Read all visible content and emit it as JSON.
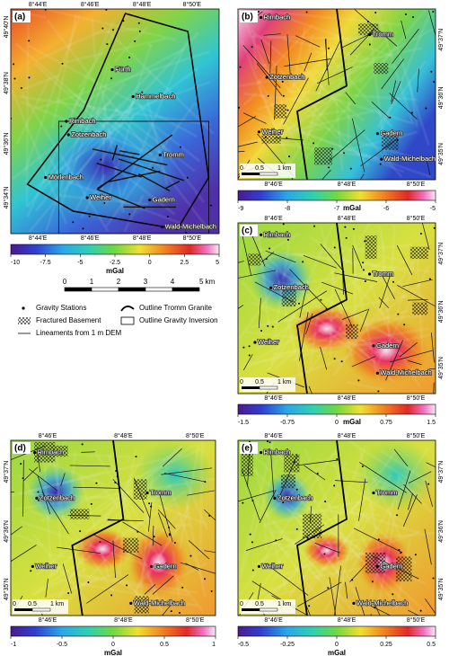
{
  "panels": [
    {
      "label": "(a)",
      "lon_labels": [
        "8°44'E",
        "8°46'E",
        "8°48'E",
        "8°50'E"
      ],
      "lat_labels": [
        "49°40'N",
        "49°38'N",
        "49°36'N",
        "49°34'N"
      ],
      "places": [
        "Fürth",
        "Hammelbach",
        "Rimbach",
        "Zotzenbach",
        "Tromm",
        "Mörlenbach",
        "Weiher",
        "Gadern",
        "Wald-Michelbach"
      ],
      "colorbar": {
        "lim": [
          -10,
          5
        ],
        "ticks": [
          -10,
          -7.5,
          -5,
          -2.5,
          0,
          2.5,
          5
        ],
        "unit": "mGal"
      }
    },
    {
      "label": "(b)",
      "lon_labels": [
        "8°46'E",
        "8°48'E",
        "8°50'E"
      ],
      "lat_labels": [
        "49°37'N",
        "49°36'N",
        "49°35'N"
      ],
      "places": [
        "Rimbach",
        "Zotzenbach",
        "Tromm",
        "Weiher",
        "Gadern",
        "Wald-Michelbach"
      ],
      "scale_labels": [
        "0",
        "0.5",
        "1 km"
      ],
      "colorbar": {
        "lim": [
          -9,
          -5
        ],
        "ticks": [
          -9,
          -8,
          -7,
          -6,
          -5
        ],
        "unit": "mGal"
      }
    },
    {
      "label": "(c)",
      "lon_labels": [
        "8°46'E",
        "8°48'E",
        "8°50'E"
      ],
      "lat_labels": [
        "49°37'N",
        "49°36'N",
        "49°35'N"
      ],
      "places": [
        "Rimbach",
        "Zotzenbach",
        "Tromm",
        "Weiher",
        "Gadern",
        "Wald-Michelbach"
      ],
      "scale_labels": [
        "0",
        "0.5",
        "1 km"
      ],
      "colorbar": {
        "lim": [
          -1.5,
          1.5
        ],
        "ticks": [
          -1.5,
          -0.75,
          0,
          0.75,
          1.5
        ],
        "unit": "mGal"
      }
    },
    {
      "label": "(d)",
      "lon_labels": [
        "8°46'E",
        "8°48'E",
        "8°50'E"
      ],
      "lat_labels": [
        "49°37'N",
        "49°36'N",
        "49°35'N"
      ],
      "places": [
        "Rimbach",
        "Zotzenbach",
        "Tromm",
        "Weiher",
        "Gadern",
        "Wald-Michelbach"
      ],
      "scale_labels": [
        "0",
        "0.5",
        "1 km"
      ],
      "colorbar": {
        "lim": [
          -1,
          1
        ],
        "ticks": [
          -1,
          -0.5,
          0,
          0.5,
          1
        ],
        "unit": "mGal"
      }
    },
    {
      "label": "(e)",
      "lon_labels": [
        "8°46'E",
        "8°48'E",
        "8°50'E"
      ],
      "lat_labels": [
        "49°37'N",
        "49°36'N",
        "49°35'N"
      ],
      "places": [
        "Rimbach",
        "Zotzenbach",
        "Tromm",
        "Weiher",
        "Gadern",
        "Wald-Michelbach"
      ],
      "scale_labels": [
        "0",
        "0.5",
        "1 km"
      ],
      "colorbar": {
        "lim": [
          -0.5,
          0.5
        ],
        "ticks": [
          -0.5,
          -0.25,
          0,
          0.25,
          0.5
        ],
        "unit": "mGal"
      }
    }
  ],
  "scale_bar": {
    "labels": [
      "0",
      "1",
      "2",
      "3",
      "4",
      "5 km"
    ]
  },
  "legend": [
    "Gravity Stations",
    "Fractured Basement",
    "Lineaments from 1 m DEM",
    "Outline Tromm Granite",
    "Outline Gravity Inversion"
  ]
}
